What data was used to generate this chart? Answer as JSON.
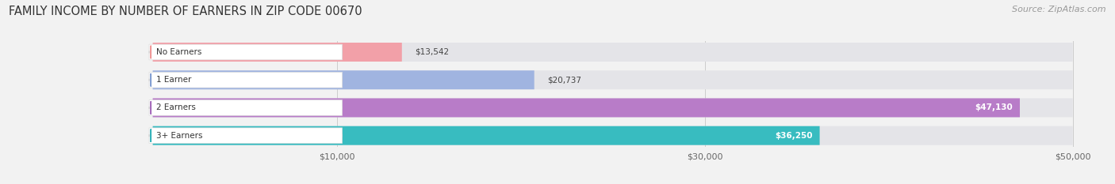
{
  "title": "FAMILY INCOME BY NUMBER OF EARNERS IN ZIP CODE 00670",
  "source": "Source: ZipAtlas.com",
  "categories": [
    "No Earners",
    "1 Earner",
    "2 Earners",
    "3+ Earners"
  ],
  "values": [
    13542,
    20737,
    47130,
    36250
  ],
  "labels": [
    "$13,542",
    "$20,737",
    "$47,130",
    "$36,250"
  ],
  "bar_colors": [
    "#f2a0a8",
    "#a0b4e0",
    "#b87cc8",
    "#38bcc0"
  ],
  "tag_colors": [
    "#ee8888",
    "#7090cc",
    "#9855b0",
    "#18a8b0"
  ],
  "background_color": "#f2f2f2",
  "bar_background": "#e4e4e8",
  "data_min": 0,
  "data_max": 50000,
  "xlim_min": -8000,
  "xlim_max": 52000,
  "xticks": [
    10000,
    30000,
    50000
  ],
  "xticklabels": [
    "$10,000",
    "$30,000",
    "$50,000"
  ],
  "title_fontsize": 10.5,
  "source_fontsize": 8,
  "bar_height": 0.68,
  "label_inside_threshold": 35000
}
